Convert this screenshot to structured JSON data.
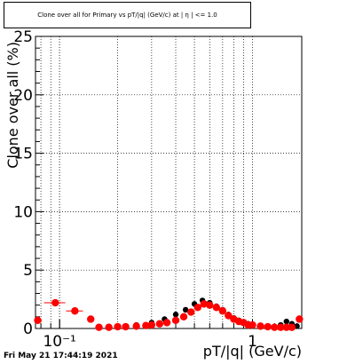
{
  "footer": {
    "timestamp": "Fri May 21 17:44:19 2021"
  },
  "colors": {
    "red": "#ff0000",
    "black": "#000000",
    "grid": "#000000"
  },
  "chart_data": {
    "type": "scatter",
    "title": "Clone  over all for Primary vs pT/|q| (GeV/c) at | η | <= 1.0",
    "xlabel": "pT/|q| (GeV/c)",
    "ylabel": "Clone  over all (%)",
    "xscale": "log",
    "xlim": [
      0.075,
      1.8
    ],
    "ylim": [
      0,
      25
    ],
    "grid": true,
    "yticks": [
      0,
      5,
      10,
      15,
      20,
      25
    ],
    "yticklabels": [
      "0",
      "5",
      "10",
      "15",
      "20",
      "25"
    ],
    "xticks": [
      0.1,
      1
    ],
    "xticklabels": [
      "10⁻¹",
      "1"
    ],
    "series": [
      {
        "color": "#000000",
        "x": [
          0.2,
          0.25,
          0.3,
          0.35,
          0.4,
          0.45,
          0.5,
          0.55,
          0.6,
          0.65,
          0.7,
          0.75,
          0.8,
          0.85,
          0.9,
          0.95,
          1.0,
          1.1,
          1.2,
          1.3,
          1.4,
          1.5,
          1.6,
          1.7
        ],
        "y": [
          0.15,
          0.3,
          0.5,
          0.8,
          1.2,
          1.6,
          2.1,
          2.4,
          2.2,
          1.9,
          1.6,
          1.2,
          0.9,
          0.7,
          0.5,
          0.4,
          0.3,
          0.25,
          0.2,
          0.15,
          0.3,
          0.6,
          0.4,
          0.2
        ]
      },
      {
        "color": "#ff0000",
        "x": [
          0.077,
          0.095,
          0.12,
          0.145,
          0.16,
          0.18,
          0.2,
          0.22,
          0.25,
          0.28,
          0.3,
          0.33,
          0.36,
          0.4,
          0.44,
          0.48,
          0.52,
          0.56,
          0.6,
          0.65,
          0.7,
          0.75,
          0.8,
          0.85,
          0.9,
          0.95,
          1.0,
          1.1,
          1.2,
          1.3,
          1.4,
          1.5,
          1.6,
          1.75
        ],
        "y": [
          0.7,
          2.2,
          1.5,
          0.8,
          0.1,
          0.1,
          0.15,
          0.15,
          0.2,
          0.25,
          0.3,
          0.4,
          0.5,
          0.7,
          1.0,
          1.4,
          1.8,
          2.1,
          2.0,
          1.8,
          1.5,
          1.1,
          0.8,
          0.6,
          0.5,
          0.3,
          0.3,
          0.2,
          0.15,
          0.1,
          0.1,
          0.1,
          0.1,
          0.8
        ],
        "xerr": [
          0.004,
          0.012,
          0.012,
          0.0,
          0.005,
          0.005,
          0.005,
          0.005,
          0.008,
          0.008,
          0.008,
          0.01,
          0.01,
          0.01,
          0.012,
          0.012,
          0.012,
          0.015,
          0.015,
          0.015,
          0.02,
          0.02,
          0.02,
          0.02,
          0.02,
          0.02,
          0.025,
          0.03,
          0.03,
          0.03,
          0.04,
          0.04,
          0.04,
          0.04
        ]
      }
    ]
  }
}
